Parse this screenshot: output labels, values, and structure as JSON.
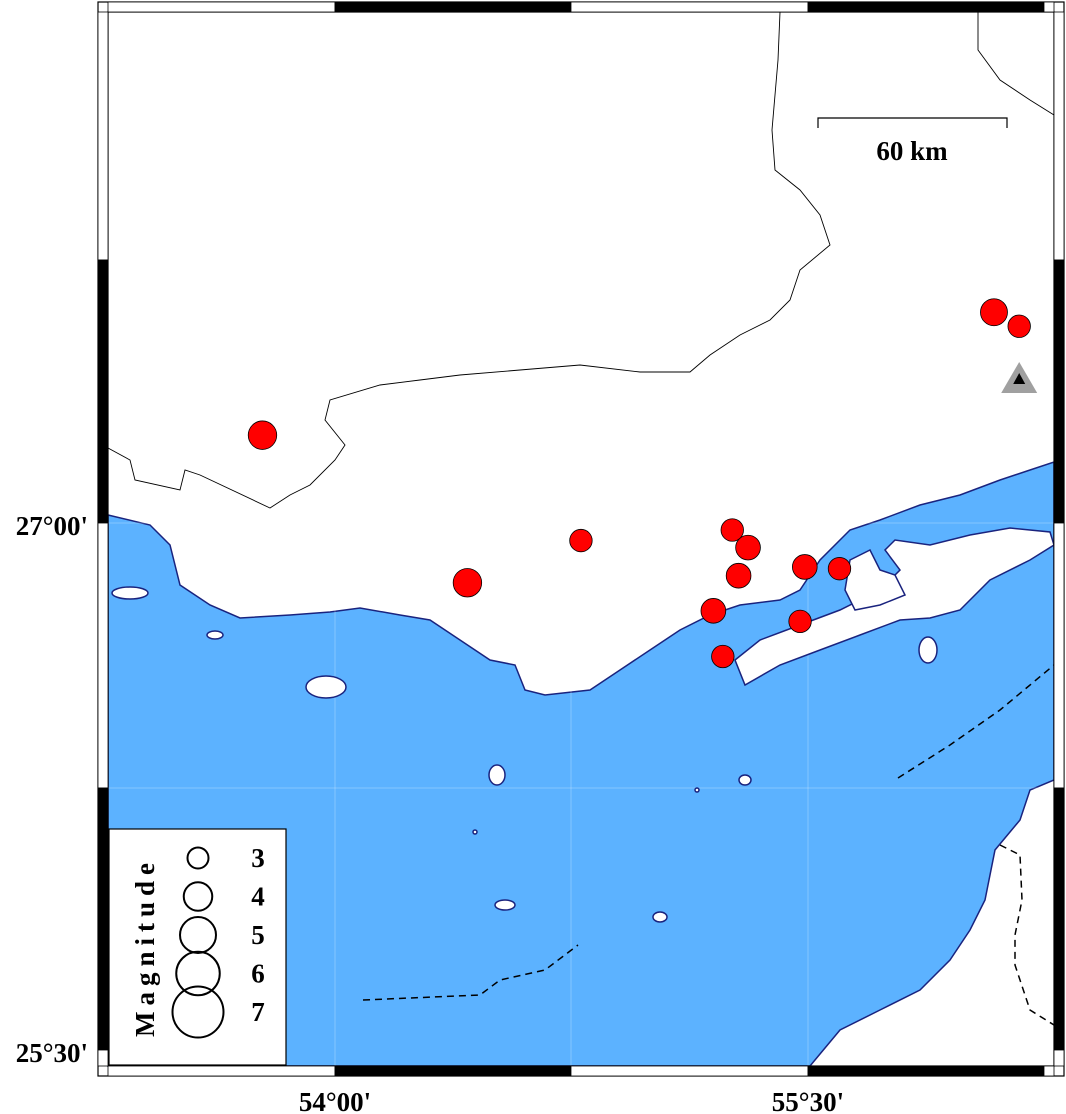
{
  "map": {
    "colors": {
      "water": "#5cb2ff",
      "land": "#ffffff",
      "coast": "#1a237e",
      "event": "#ff0000",
      "station": "#a0a0a0"
    },
    "axis_labels": {
      "x": [
        {
          "lon": 54.0,
          "text": "54°00'"
        },
        {
          "lon": 55.5,
          "text": "55°30'"
        }
      ],
      "y": [
        {
          "lat": 27.0,
          "text": "27°00'"
        },
        {
          "lat": 25.5,
          "text": "25°30'"
        }
      ]
    },
    "scale_bar": {
      "label": "60 km",
      "length_km": 60
    },
    "legend": {
      "title": "Magnitude",
      "entries": [
        {
          "magnitude": 3,
          "label": "3"
        },
        {
          "magnitude": 4,
          "label": "4"
        },
        {
          "magnitude": 5,
          "label": "5"
        },
        {
          "magnitude": 6,
          "label": "6"
        },
        {
          "magnitude": 7,
          "label": "7"
        }
      ]
    },
    "events": [
      {
        "lon": 53.77,
        "lat": 27.25,
        "mag": 4.0
      },
      {
        "lon": 54.42,
        "lat": 26.83,
        "mag": 4.0
      },
      {
        "lon": 54.78,
        "lat": 26.95,
        "mag": 3.2
      },
      {
        "lon": 55.26,
        "lat": 26.98,
        "mag": 3.2
      },
      {
        "lon": 55.31,
        "lat": 26.93,
        "mag": 3.5
      },
      {
        "lon": 55.28,
        "lat": 26.85,
        "mag": 3.5
      },
      {
        "lon": 55.2,
        "lat": 26.75,
        "mag": 3.5
      },
      {
        "lon": 55.49,
        "lat": 26.875,
        "mag": 3.5
      },
      {
        "lon": 55.6,
        "lat": 26.87,
        "mag": 3.2
      },
      {
        "lon": 55.475,
        "lat": 26.72,
        "mag": 3.2
      },
      {
        "lon": 55.23,
        "lat": 26.62,
        "mag": 3.2
      },
      {
        "lon": 56.09,
        "lat": 27.6,
        "mag": 3.8
      },
      {
        "lon": 56.17,
        "lat": 27.56,
        "mag": 3.2
      }
    ],
    "stations": [
      {
        "lon": 56.17,
        "lat": 27.41,
        "icon": "triangle"
      }
    ]
  }
}
